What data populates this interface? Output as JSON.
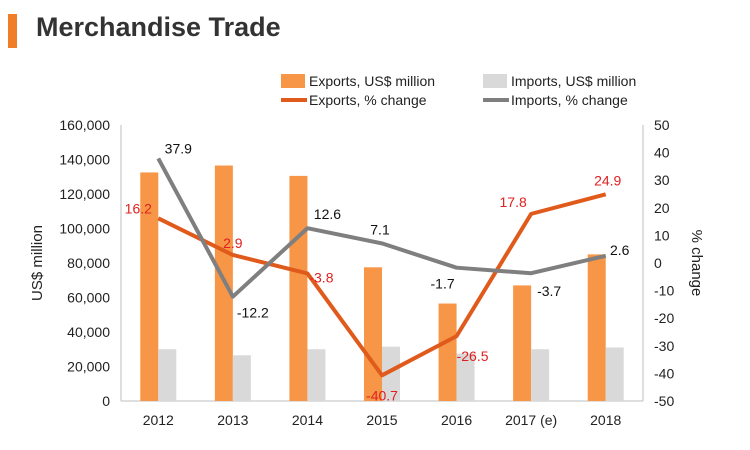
{
  "header": {
    "title": "Merchandise Trade",
    "accent_color": "#f07e26"
  },
  "chart_data": {
    "type": "bar",
    "categories": [
      "2012",
      "2013",
      "2014",
      "2015",
      "2016",
      "2017 (e)",
      "2018"
    ],
    "series": [
      {
        "name": "Exports, US$ million",
        "kind": "bar",
        "axis": "left",
        "color": "#f79646",
        "values": [
          132500,
          136500,
          130500,
          77500,
          56500,
          67000,
          85000
        ]
      },
      {
        "name": "Imports, US$ million",
        "kind": "bar",
        "axis": "left",
        "color": "#d9d9d9",
        "values": [
          30000,
          26500,
          30000,
          31500,
          27500,
          30000,
          31000
        ]
      },
      {
        "name": "Exports, % change",
        "kind": "line",
        "axis": "right",
        "color": "#e05a1c",
        "values": [
          16.2,
          2.9,
          -3.8,
          -40.7,
          -26.5,
          17.8,
          24.9
        ],
        "labels": [
          "16.2",
          "2.9",
          "-3.8",
          "-40.7",
          "-26.5",
          "17.8",
          "24.9"
        ]
      },
      {
        "name": "Imports, % change",
        "kind": "line",
        "axis": "right",
        "color": "#7f7f7f",
        "values": [
          37.9,
          -12.2,
          12.6,
          7.1,
          -1.7,
          -3.7,
          2.6
        ],
        "labels": [
          "37.9",
          "-12.2",
          "12.6",
          "7.1",
          "-1.7",
          "-3.7",
          "2.6"
        ]
      }
    ],
    "ylabel": "US$ million",
    "y2label": "% change",
    "ylim": [
      0,
      160000
    ],
    "y2lim": [
      -50,
      50
    ],
    "yticks": [
      "0",
      "20,000",
      "40,000",
      "60,000",
      "80,000",
      "100,000",
      "120,000",
      "140,000",
      "160,000"
    ],
    "y2ticks": [
      "-50",
      "-40",
      "-30",
      "-20",
      "-10",
      "0",
      "10",
      "20",
      "30",
      "40",
      "50"
    ],
    "grid": false,
    "legend_position": "top-right"
  }
}
